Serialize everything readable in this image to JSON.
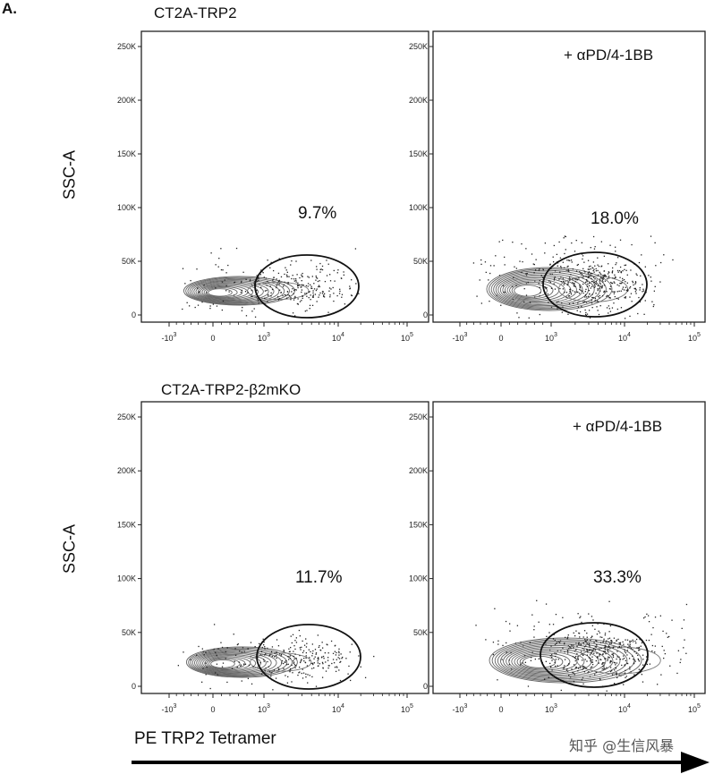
{
  "figure": {
    "panel_letter": "A.",
    "x_axis_label": "PE TRP2 Tetramer",
    "watermark": "知乎 @生信风暴"
  },
  "rows": [
    {
      "title": "CT2A-TRP2",
      "ylabel": "SSC-A"
    },
    {
      "title": "CT2A-TRP2-β2mKO",
      "ylabel": "SSC-A"
    }
  ],
  "chart_data": [
    {
      "type": "scatter",
      "subtype": "flow-cytometry-contour",
      "row": "CT2A-TRP2",
      "condition": "",
      "treatment_label": "",
      "gate_percent": "9.7%",
      "xlabel": "PE TRP2 Tetramer",
      "ylabel": "SSC-A",
      "x_scale": "biexponential",
      "ylim": [
        0,
        260000
      ],
      "xticks": [
        {
          "base": "-10",
          "exp": "3"
        },
        {
          "base": "0",
          "exp": ""
        },
        {
          "base": "10",
          "exp": "3"
        },
        {
          "base": "10",
          "exp": "4"
        },
        {
          "base": "10",
          "exp": "5"
        }
      ],
      "yticks": [
        "250K",
        "200K",
        "150K",
        "100K",
        "50K",
        "0"
      ],
      "ytick_values": [
        250000,
        200000,
        150000,
        100000,
        50000,
        0
      ]
    },
    {
      "type": "scatter",
      "subtype": "flow-cytometry-contour",
      "row": "CT2A-TRP2",
      "condition": "treated",
      "treatment_label": "+ αPD/4-1BB",
      "gate_percent": "18.0%",
      "xlabel": "PE TRP2 Tetramer",
      "ylabel": "SSC-A",
      "x_scale": "biexponential",
      "ylim": [
        0,
        260000
      ],
      "xticks": [
        {
          "base": "-10",
          "exp": "3"
        },
        {
          "base": "0",
          "exp": ""
        },
        {
          "base": "10",
          "exp": "3"
        },
        {
          "base": "10",
          "exp": "4"
        },
        {
          "base": "10",
          "exp": "5"
        }
      ],
      "yticks": [
        "250K",
        "200K",
        "150K",
        "100K",
        "50K",
        "0"
      ],
      "ytick_values": [
        250000,
        200000,
        150000,
        100000,
        50000,
        0
      ]
    },
    {
      "type": "scatter",
      "subtype": "flow-cytometry-contour",
      "row": "CT2A-TRP2-β2mKO",
      "condition": "",
      "treatment_label": "",
      "gate_percent": "11.7%",
      "xlabel": "PE TRP2 Tetramer",
      "ylabel": "SSC-A",
      "x_scale": "biexponential",
      "ylim": [
        0,
        260000
      ],
      "xticks": [
        {
          "base": "-10",
          "exp": "3"
        },
        {
          "base": "0",
          "exp": ""
        },
        {
          "base": "10",
          "exp": "3"
        },
        {
          "base": "10",
          "exp": "4"
        },
        {
          "base": "10",
          "exp": "5"
        }
      ],
      "yticks": [
        "250K",
        "200K",
        "150K",
        "100K",
        "50K",
        "0"
      ],
      "ytick_values": [
        250000,
        200000,
        150000,
        100000,
        50000,
        0
      ]
    },
    {
      "type": "scatter",
      "subtype": "flow-cytometry-contour",
      "row": "CT2A-TRP2-β2mKO",
      "condition": "treated",
      "treatment_label": "+ αPD/4-1BB",
      "gate_percent": "33.3%",
      "xlabel": "PE TRP2 Tetramer",
      "ylabel": "SSC-A",
      "x_scale": "biexponential",
      "ylim": [
        0,
        260000
      ],
      "xticks": [
        {
          "base": "-10",
          "exp": "3"
        },
        {
          "base": "0",
          "exp": ""
        },
        {
          "base": "10",
          "exp": "3"
        },
        {
          "base": "10",
          "exp": "4"
        },
        {
          "base": "10",
          "exp": "5"
        }
      ],
      "yticks": [
        "250K",
        "200K",
        "150K",
        "100K",
        "50K",
        "0"
      ],
      "ytick_values": [
        250000,
        200000,
        150000,
        100000,
        50000,
        0
      ]
    }
  ]
}
